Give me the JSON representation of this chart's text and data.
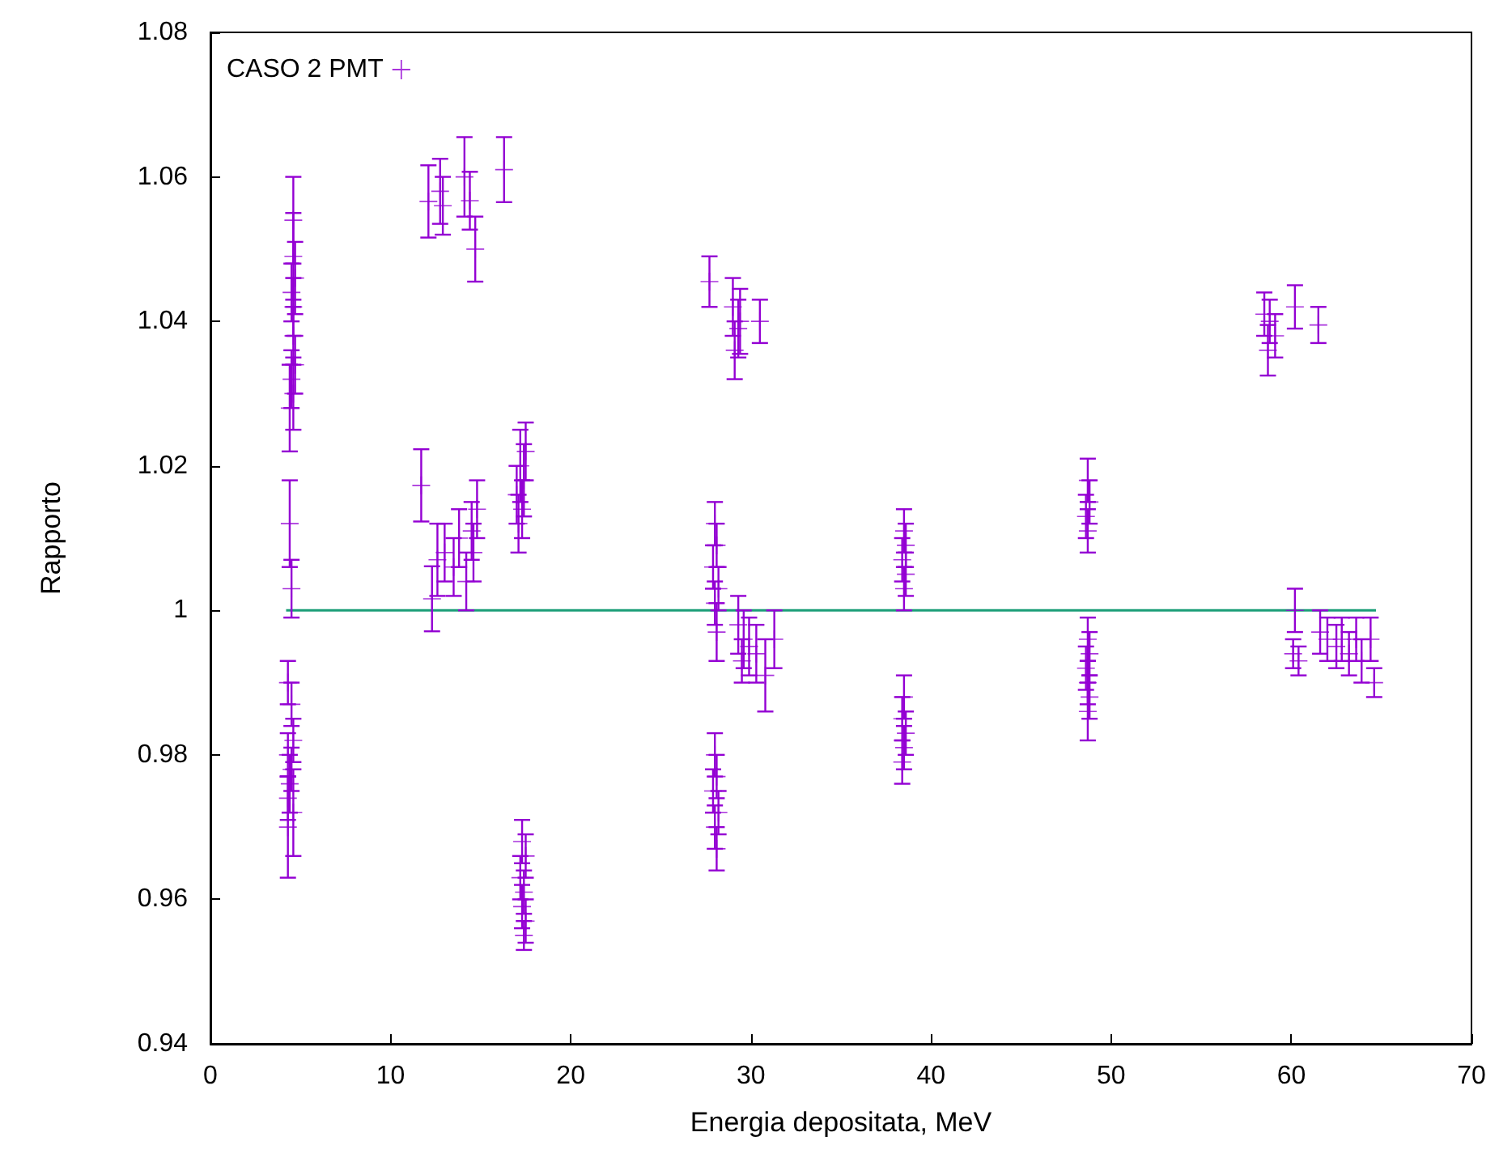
{
  "chart_data": {
    "type": "scatter",
    "xlabel": "Energia depositata, MeV",
    "ylabel": "Rapporto",
    "xlim": [
      0,
      70
    ],
    "xticks": [
      0,
      10,
      20,
      30,
      40,
      50,
      60,
      70
    ],
    "ylim": [
      0.94,
      1.08
    ],
    "yticks": [
      0.94,
      0.96,
      0.98,
      1,
      1.02,
      1.04,
      1.06,
      1.08
    ],
    "grid": false,
    "legend": "top left",
    "marker": "cross",
    "series": [
      {
        "name": "CASO 2 PMT",
        "color": "#9400d3",
        "x": [
          4.6,
          4.7,
          4.5,
          4.6,
          4.6,
          4.7,
          4.5,
          4.6,
          4.4,
          4.6,
          4.4,
          4.5,
          4.3,
          4.5,
          4.6,
          4.3,
          4.5,
          4.4,
          4.3,
          4.6,
          4.3,
          12.1,
          12.75,
          12.9,
          14.1,
          14.4,
          14.7,
          16.3,
          11.7,
          12.3,
          12.6,
          13.0,
          13.5,
          13.8,
          14.2,
          14.5,
          14.8,
          14.6,
          17.0,
          17.2,
          17.4,
          17.3,
          17.5,
          17.1,
          17.3,
          17.5,
          17.2,
          17.4,
          17.3,
          17.5,
          17.4,
          27.7,
          29.0,
          29.3,
          29.1,
          29.4,
          30.5,
          28.0,
          28.1,
          27.9,
          28.2,
          28.0,
          28.1,
          29.3,
          29.6,
          29.9,
          30.3,
          30.8,
          31.3,
          29.5,
          28.0,
          28.1,
          27.9,
          28.2,
          28.0,
          28.1,
          38.5,
          38.6,
          38.4,
          38.6,
          38.5,
          38.5,
          38.4,
          38.6,
          38.5,
          38.4,
          48.7,
          48.8,
          48.6,
          48.7,
          48.7,
          48.8,
          48.6,
          48.7,
          48.8,
          48.7,
          58.5,
          58.8,
          59.1,
          58.7,
          60.2,
          61.5,
          60.2,
          60.1,
          60.4,
          61.6,
          62.0,
          62.5,
          62.8,
          63.2,
          63.6,
          63.9,
          64.4,
          64.6
        ],
        "values": [
          1.049,
          1.046,
          1.044,
          1.042,
          1.038,
          1.034,
          1.032,
          1.03,
          1.028,
          1.054,
          1.012,
          1.003,
          0.99,
          0.987,
          0.982,
          0.98,
          0.978,
          0.976,
          0.974,
          0.972,
          0.97,
          1.0566,
          1.058,
          1.056,
          1.06,
          1.0567,
          1.05,
          1.061,
          1.0173,
          1.0016,
          1.007,
          1.008,
          1.006,
          1.01,
          1.004,
          1.011,
          1.014,
          1.008,
          1.016,
          1.02,
          1.018,
          1.014,
          1.022,
          1.012,
          0.968,
          0.966,
          0.963,
          0.961,
          0.959,
          0.957,
          0.955,
          1.0455,
          1.042,
          1.039,
          1.036,
          1.04,
          1.04,
          1.012,
          1.009,
          1.006,
          1.003,
          1.001,
          0.997,
          0.998,
          0.996,
          0.995,
          0.994,
          0.991,
          0.996,
          0.993,
          0.98,
          0.977,
          0.975,
          0.972,
          0.97,
          0.967,
          1.011,
          1.009,
          1.007,
          1.005,
          1.003,
          0.988,
          0.985,
          0.983,
          0.981,
          0.979,
          1.018,
          1.015,
          1.013,
          1.011,
          0.996,
          0.994,
          0.992,
          0.99,
          0.988,
          0.986,
          1.041,
          1.04,
          1.038,
          1.036,
          1.042,
          1.0395,
          1.0,
          0.994,
          0.993,
          0.997,
          0.996,
          0.995,
          0.996,
          0.994,
          0.996,
          0.993,
          0.996,
          0.99
        ],
        "errors": [
          0.006,
          0.005,
          0.004,
          0.004,
          0.004,
          0.004,
          0.004,
          0.005,
          0.006,
          0.006,
          0.006,
          0.004,
          0.003,
          0.003,
          0.003,
          0.003,
          0.003,
          0.004,
          0.003,
          0.006,
          0.007,
          0.005,
          0.0045,
          0.004,
          0.0055,
          0.004,
          0.0045,
          0.0045,
          0.005,
          0.0045,
          0.005,
          0.004,
          0.004,
          0.004,
          0.004,
          0.004,
          0.004,
          0.004,
          0.004,
          0.005,
          0.005,
          0.004,
          0.004,
          0.004,
          0.003,
          0.003,
          0.003,
          0.003,
          0.003,
          0.003,
          0.002,
          0.0035,
          0.004,
          0.004,
          0.004,
          0.0045,
          0.003,
          0.003,
          0.003,
          0.003,
          0.003,
          0.003,
          0.004,
          0.004,
          0.004,
          0.004,
          0.004,
          0.005,
          0.004,
          0.003,
          0.003,
          0.003,
          0.003,
          0.003,
          0.003,
          0.003,
          0.003,
          0.003,
          0.003,
          0.003,
          0.003,
          0.003,
          0.003,
          0.003,
          0.003,
          0.003,
          0.003,
          0.003,
          0.003,
          0.003,
          0.003,
          0.003,
          0.003,
          0.003,
          0.003,
          0.004,
          0.003,
          0.003,
          0.003,
          0.0035,
          0.003,
          0.0025,
          0.003,
          0.002,
          0.002,
          0.003,
          0.003,
          0.003,
          0.003,
          0.003,
          0.003,
          0.003,
          0.003,
          0.002
        ]
      },
      {
        "color": "#1a9e77",
        "type": "line",
        "marker": "none",
        "x": [
          4.2,
          64.7
        ],
        "values": [
          1,
          1
        ]
      }
    ]
  }
}
